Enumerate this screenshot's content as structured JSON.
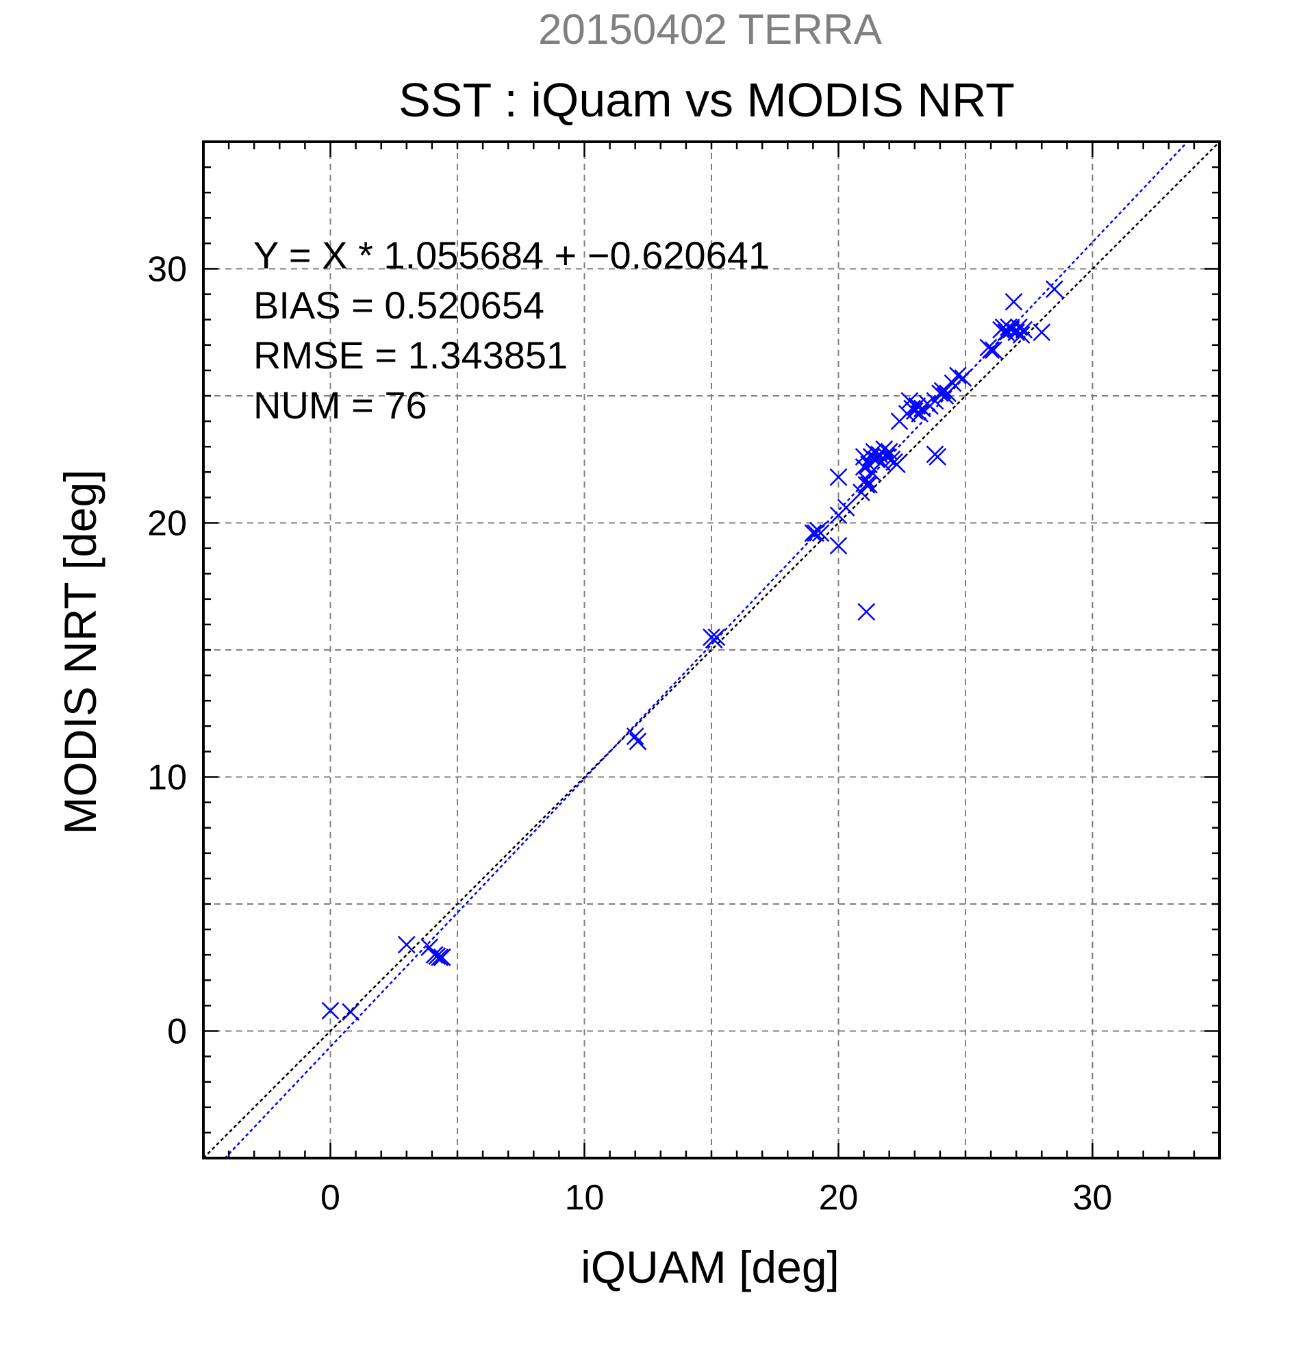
{
  "chart_data": {
    "type": "scatter",
    "supertitle": "20150402 TERRA",
    "title": "SST : iQuam vs MODIS NRT",
    "xlabel": "iQUAM [deg]",
    "ylabel": "MODIS NRT [deg]",
    "xlim": [
      -5,
      35
    ],
    "ylim": [
      -5,
      35
    ],
    "xticks": [
      0,
      10,
      20,
      30
    ],
    "yticks": [
      0,
      10,
      20,
      30
    ],
    "grid": true,
    "marker": "x",
    "marker_color": "#0000ff",
    "regression": {
      "slope": 1.055684,
      "intercept": -0.620641,
      "color": "#0000ff",
      "style": "dotted"
    },
    "identity_line": {
      "color": "#000000",
      "style": "dotted"
    },
    "stats": [
      "Y = X * 1.055684 + −0.620641",
      "BIAS = 0.520654",
      "RMSE = 1.343851",
      "NUM = 76"
    ],
    "points": [
      [
        0.0,
        0.8
      ],
      [
        0.8,
        0.75
      ],
      [
        3.0,
        3.4
      ],
      [
        3.9,
        3.3
      ],
      [
        4.1,
        3.0
      ],
      [
        4.2,
        2.95
      ],
      [
        4.3,
        2.9
      ],
      [
        4.4,
        2.9
      ],
      [
        12.0,
        11.6
      ],
      [
        12.1,
        11.4
      ],
      [
        15.0,
        15.5
      ],
      [
        15.1,
        15.4
      ],
      [
        15.2,
        15.5
      ],
      [
        19.0,
        19.6
      ],
      [
        19.1,
        19.6
      ],
      [
        19.2,
        19.7
      ],
      [
        19.3,
        19.6
      ],
      [
        20.0,
        21.8
      ],
      [
        20.0,
        19.1
      ],
      [
        20.0,
        20.3
      ],
      [
        20.3,
        20.6
      ],
      [
        21.1,
        16.5
      ],
      [
        20.9,
        21.2
      ],
      [
        21.0,
        22.6
      ],
      [
        21.0,
        22.2
      ],
      [
        21.1,
        21.7
      ],
      [
        21.1,
        21.5
      ],
      [
        21.2,
        21.5
      ],
      [
        21.2,
        22.3
      ],
      [
        21.3,
        22.0
      ],
      [
        21.3,
        22.6
      ],
      [
        21.4,
        22.8
      ],
      [
        21.5,
        22.5
      ],
      [
        21.6,
        22.7
      ],
      [
        21.7,
        22.4
      ],
      [
        21.8,
        22.9
      ],
      [
        21.9,
        22.6
      ],
      [
        22.0,
        22.8
      ],
      [
        22.1,
        22.5
      ],
      [
        22.2,
        22.4
      ],
      [
        22.3,
        22.3
      ],
      [
        22.4,
        24.0
      ],
      [
        22.7,
        24.3
      ],
      [
        22.8,
        24.8
      ],
      [
        22.9,
        24.5
      ],
      [
        23.0,
        24.4
      ],
      [
        23.1,
        24.6
      ],
      [
        23.2,
        24.3
      ],
      [
        23.3,
        24.5
      ],
      [
        23.5,
        24.7
      ],
      [
        23.6,
        24.6
      ],
      [
        23.8,
        24.8
      ],
      [
        23.8,
        22.7
      ],
      [
        23.9,
        22.6
      ],
      [
        24.0,
        25.1
      ],
      [
        24.1,
        25.2
      ],
      [
        24.2,
        25.0
      ],
      [
        24.3,
        25.1
      ],
      [
        24.5,
        25.5
      ],
      [
        24.7,
        25.8
      ],
      [
        24.9,
        25.7
      ],
      [
        25.9,
        26.9
      ],
      [
        26.0,
        26.8
      ],
      [
        26.1,
        26.8
      ],
      [
        26.4,
        27.6
      ],
      [
        26.5,
        27.7
      ],
      [
        26.6,
        27.5
      ],
      [
        26.7,
        27.7
      ],
      [
        26.8,
        27.6
      ],
      [
        26.9,
        28.7
      ],
      [
        27.0,
        27.5
      ],
      [
        27.1,
        27.7
      ],
      [
        27.2,
        27.4
      ],
      [
        27.3,
        27.6
      ],
      [
        28.0,
        27.5
      ],
      [
        28.5,
        29.2
      ]
    ]
  }
}
